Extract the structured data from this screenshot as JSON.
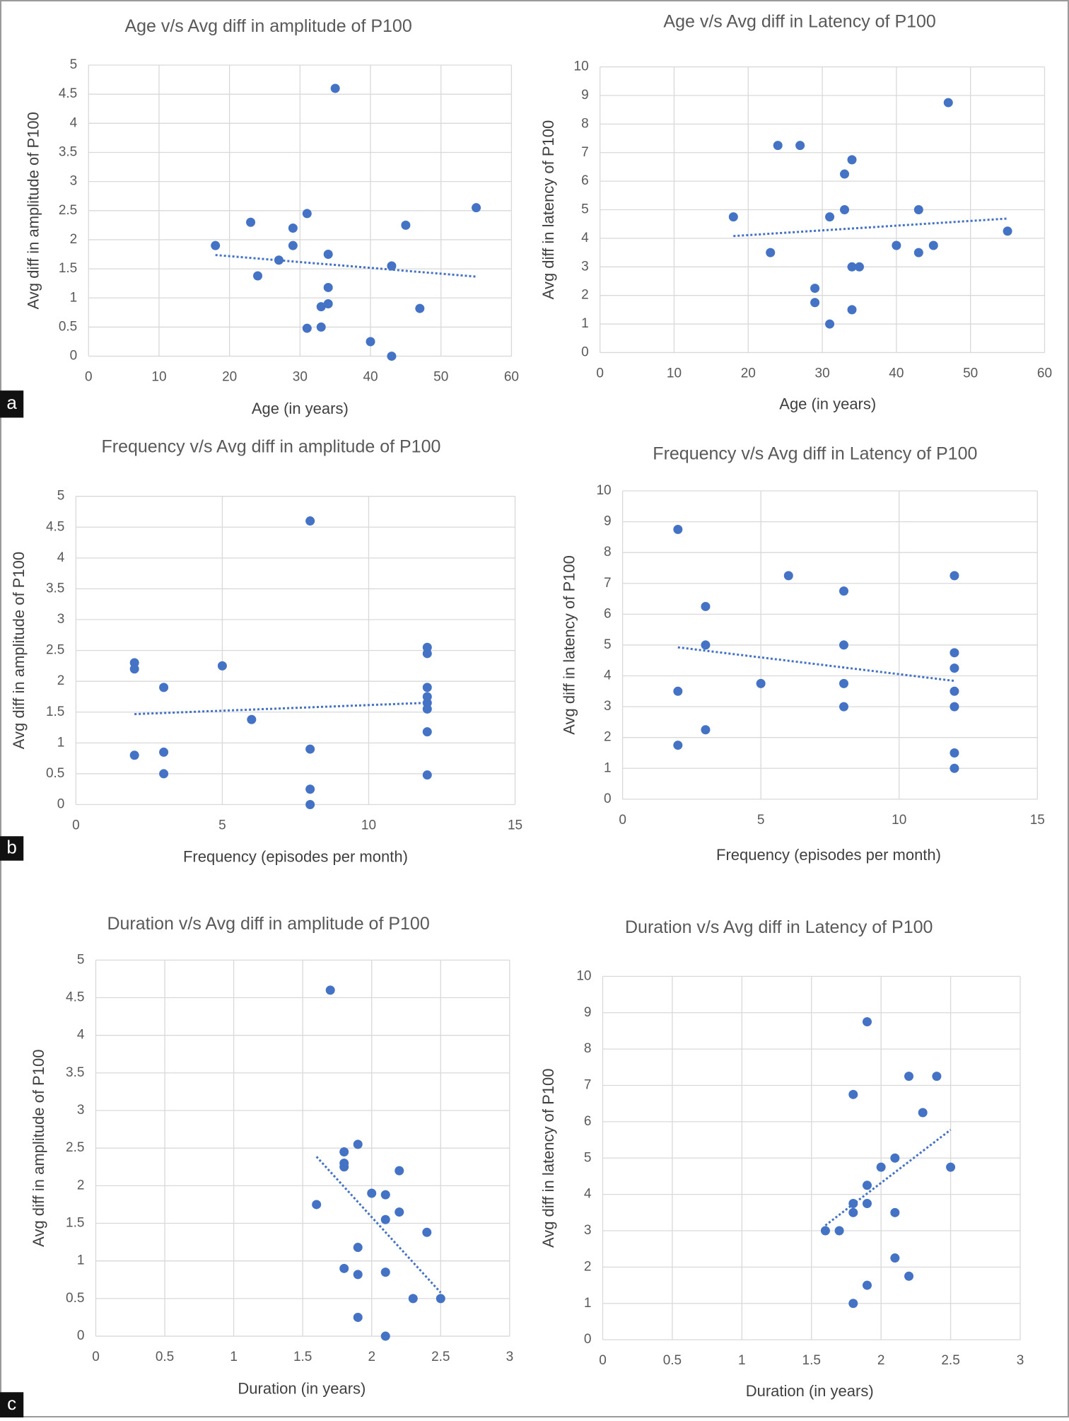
{
  "panel_labels": [
    "a",
    "b",
    "c"
  ],
  "chart_data": [
    {
      "type": "scatter",
      "title": "Age v/s Avg diff in amplitude of P100",
      "xlabel": "Age  (in years)",
      "ylabel": "Avg  diff in amplitude of P100",
      "x": [
        18,
        23,
        24,
        27,
        29,
        29,
        31,
        31,
        33,
        33,
        34,
        34,
        34,
        35,
        40,
        43,
        43,
        45,
        47,
        55
      ],
      "series": [
        {
          "color": "#4472c4",
          "values": [
            1.9,
            2.3,
            1.38,
            1.65,
            2.2,
            1.9,
            2.45,
            0.48,
            0.85,
            0.5,
            1.75,
            1.18,
            0.9,
            4.6,
            0.25,
            1.55,
            0,
            2.25,
            0.82,
            2.55
          ]
        }
      ],
      "xlim": [
        0,
        60
      ],
      "xticks": [
        0,
        10,
        20,
        30,
        40,
        50,
        60
      ],
      "ylim": [
        0,
        5
      ],
      "yticks": [
        0,
        0.5,
        1,
        1.5,
        2,
        2.5,
        3,
        3.5,
        4,
        4.5,
        5
      ],
      "grid": true,
      "trendline": "linear"
    },
    {
      "type": "scatter",
      "title": "Age v/s Avg diff in Latency of P100",
      "xlabel": "Age  (in years)",
      "ylabel": "Avg  diff in latency of P100",
      "x": [
        18,
        23,
        24,
        27,
        29,
        29,
        31,
        31,
        33,
        33,
        34,
        34,
        34,
        35,
        40,
        43,
        43,
        45,
        47,
        55
      ],
      "series": [
        {
          "color": "#4472c4",
          "values": [
            4.75,
            3.5,
            7.25,
            7.25,
            2.25,
            1.75,
            4.75,
            1,
            6.25,
            5,
            6.75,
            3,
            1.5,
            3,
            3.75,
            5,
            3.5,
            3.75,
            8.75,
            4.25
          ]
        }
      ],
      "xlim": [
        0,
        60
      ],
      "xticks": [
        0,
        10,
        20,
        30,
        40,
        50,
        60
      ],
      "ylim": [
        0,
        10
      ],
      "yticks": [
        0,
        1,
        2,
        3,
        4,
        5,
        6,
        7,
        8,
        9,
        10
      ],
      "grid": true,
      "trendline": "linear"
    },
    {
      "type": "scatter",
      "title": "Frequency v/s Avg diff in amplitude of P100",
      "xlabel": "Frequency  (episodes per month)",
      "ylabel": "Avg  diff in amplitude of P100",
      "x": [
        2,
        2,
        2,
        3,
        3,
        3,
        5,
        6,
        8,
        8,
        8,
        8,
        12,
        12,
        12,
        12,
        12,
        12,
        12,
        12
      ],
      "series": [
        {
          "color": "#4472c4",
          "values": [
            2.3,
            2.2,
            0.8,
            1.9,
            0.85,
            0.5,
            2.25,
            1.38,
            4.6,
            0.9,
            0.25,
            0,
            2.55,
            2.45,
            1.9,
            1.75,
            1.65,
            1.55,
            1.18,
            0.48
          ]
        }
      ],
      "xlim": [
        0,
        15
      ],
      "xticks": [
        0,
        5,
        10,
        15
      ],
      "ylim": [
        0,
        5
      ],
      "yticks": [
        0,
        0.5,
        1,
        1.5,
        2,
        2.5,
        3,
        3.5,
        4,
        4.5,
        5
      ],
      "grid": true,
      "trendline": "linear"
    },
    {
      "type": "scatter",
      "title": "Frequency v/s Avg diff in Latency of P100",
      "xlabel": "Frequency  (episodes per month)",
      "ylabel": "Avg  diff in latency of P100",
      "x": [
        2,
        2,
        2,
        3,
        3,
        3,
        5,
        6,
        8,
        8,
        8,
        8,
        12,
        12,
        12,
        12,
        12,
        12,
        12
      ],
      "series": [
        {
          "color": "#4472c4",
          "values": [
            8.75,
            3.5,
            1.75,
            6.25,
            5,
            2.25,
            3.75,
            7.25,
            6.75,
            5,
            3.75,
            3,
            7.25,
            4.75,
            4.25,
            3.5,
            3,
            1.5,
            1
          ]
        }
      ],
      "xlim": [
        0,
        15
      ],
      "xticks": [
        0,
        5,
        10,
        15
      ],
      "ylim": [
        0,
        10
      ],
      "yticks": [
        0,
        1,
        2,
        3,
        4,
        5,
        6,
        7,
        8,
        9,
        10
      ],
      "grid": true,
      "trendline": "linear"
    },
    {
      "type": "scatter",
      "title": "Duration v/s Avg diff in amplitude of P100",
      "xlabel": "Duration (in years)",
      "ylabel": "Avg  diff in amplitude of P100",
      "x": [
        1.6,
        1.7,
        1.8,
        1.8,
        1.8,
        1.8,
        1.9,
        1.9,
        1.9,
        1.9,
        2,
        2.1,
        2.1,
        2.1,
        2.1,
        2.2,
        2.2,
        2.3,
        2.4,
        2.5
      ],
      "series": [
        {
          "color": "#4472c4",
          "values": [
            1.75,
            4.6,
            2.45,
            2.3,
            2.25,
            0.9,
            2.55,
            1.18,
            0.82,
            0.25,
            1.9,
            1.88,
            1.55,
            0.85,
            0,
            2.2,
            1.65,
            0.5,
            1.38,
            0.5
          ]
        }
      ],
      "xlim": [
        0,
        3
      ],
      "xticks": [
        0,
        0.5,
        1,
        1.5,
        2,
        2.5,
        3
      ],
      "ylim": [
        0,
        5
      ],
      "yticks": [
        0,
        0.5,
        1,
        1.5,
        2,
        2.5,
        3,
        3.5,
        4,
        4.5,
        5
      ],
      "grid": true,
      "trendline": "linear"
    },
    {
      "type": "scatter",
      "title": "Duration v/s Avg diff in Latency of P100",
      "xlabel": "Duration (in years)",
      "ylabel": "Avg  diff in latency of P100",
      "x": [
        1.6,
        1.7,
        1.8,
        1.8,
        1.8,
        1.8,
        1.9,
        1.9,
        1.9,
        1.9,
        2,
        2.1,
        2.1,
        2.1,
        2.2,
        2.2,
        2.3,
        2.4,
        2.5
      ],
      "series": [
        {
          "color": "#4472c4",
          "values": [
            3,
            3,
            6.75,
            3.75,
            3.5,
            1,
            8.75,
            4.25,
            3.75,
            1.5,
            4.75,
            5,
            3.5,
            2.25,
            7.25,
            1.75,
            6.25,
            7.25,
            4.75
          ]
        }
      ],
      "xlim": [
        0,
        3
      ],
      "xticks": [
        0,
        0.5,
        1,
        1.5,
        2,
        2.5,
        3
      ],
      "ylim": [
        0,
        10
      ],
      "yticks": [
        0,
        1,
        2,
        3,
        4,
        5,
        6,
        7,
        8,
        9,
        10
      ],
      "grid": true,
      "trendline": "linear"
    }
  ]
}
